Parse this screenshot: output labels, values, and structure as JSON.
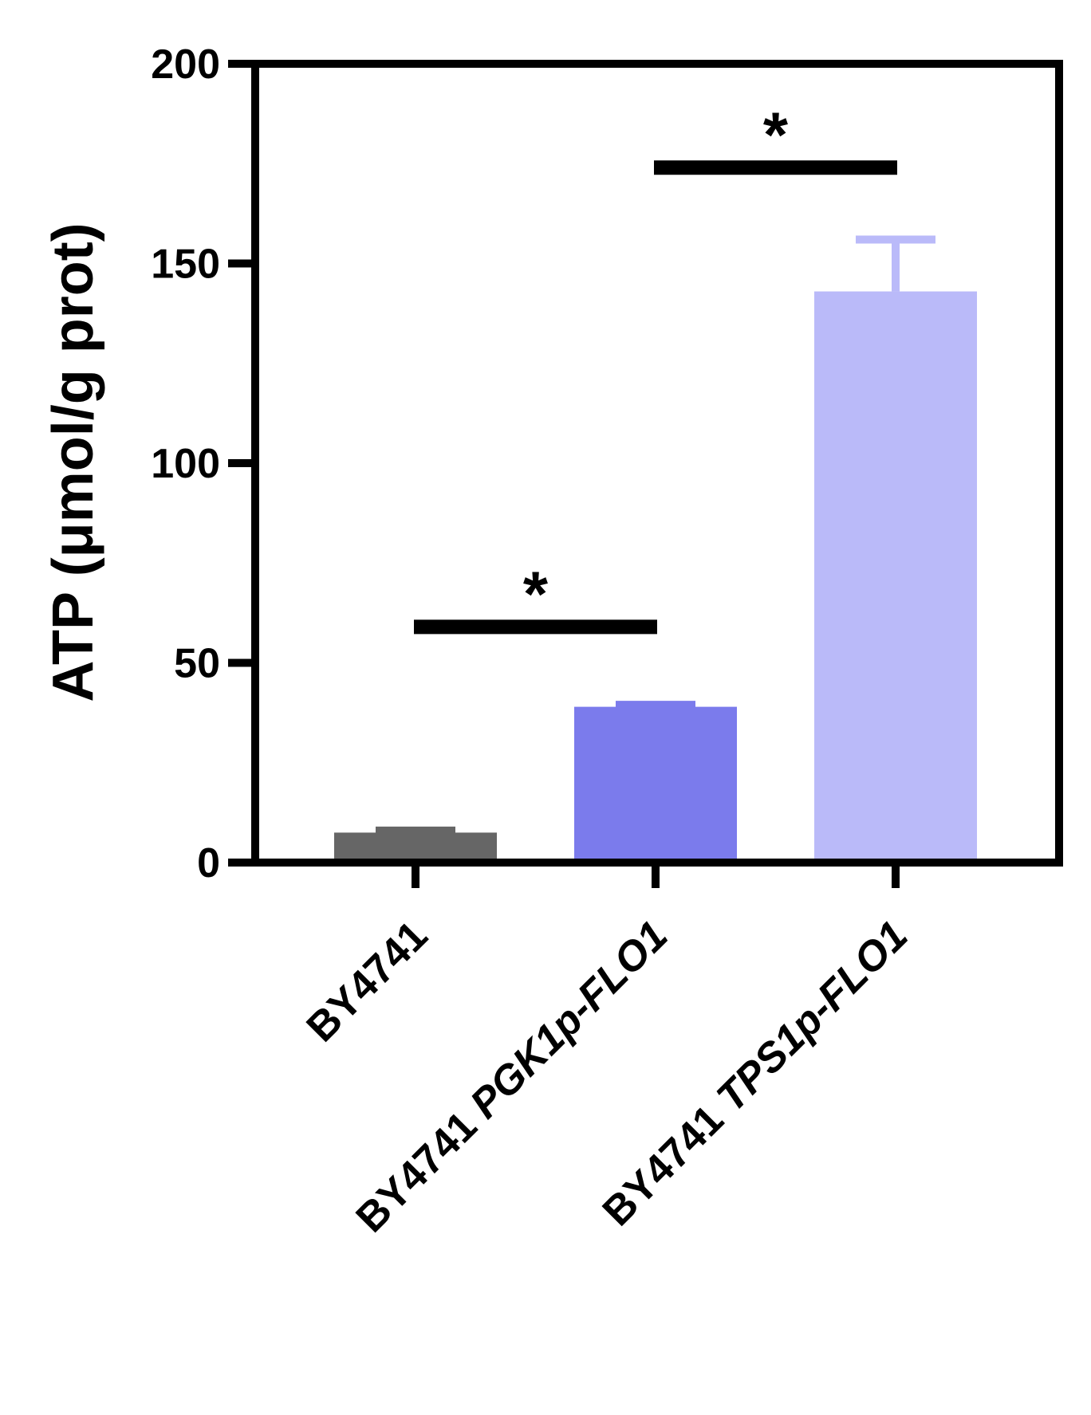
{
  "chart_data": {
    "type": "bar",
    "title": "",
    "xlabel": "",
    "ylabel": "ATP (μmol/g prot)",
    "ylim": [
      0,
      200
    ],
    "yticks": [
      0,
      50,
      100,
      150,
      200
    ],
    "grid": false,
    "categories": [
      "BY4741",
      "BY4741 PGK1p-FLO1",
      "BY4741 TPS1p-FLO1"
    ],
    "values": [
      7.5,
      39,
      143
    ],
    "error": [
      0.5,
      0.5,
      13
    ],
    "colors": [
      "#666666",
      "#7b7bec",
      "#babaf9"
    ],
    "significance": [
      {
        "from": 0,
        "to": 1,
        "y": 59,
        "label": "*"
      },
      {
        "from": 1,
        "to": 2,
        "y": 174,
        "label": "*"
      }
    ]
  }
}
